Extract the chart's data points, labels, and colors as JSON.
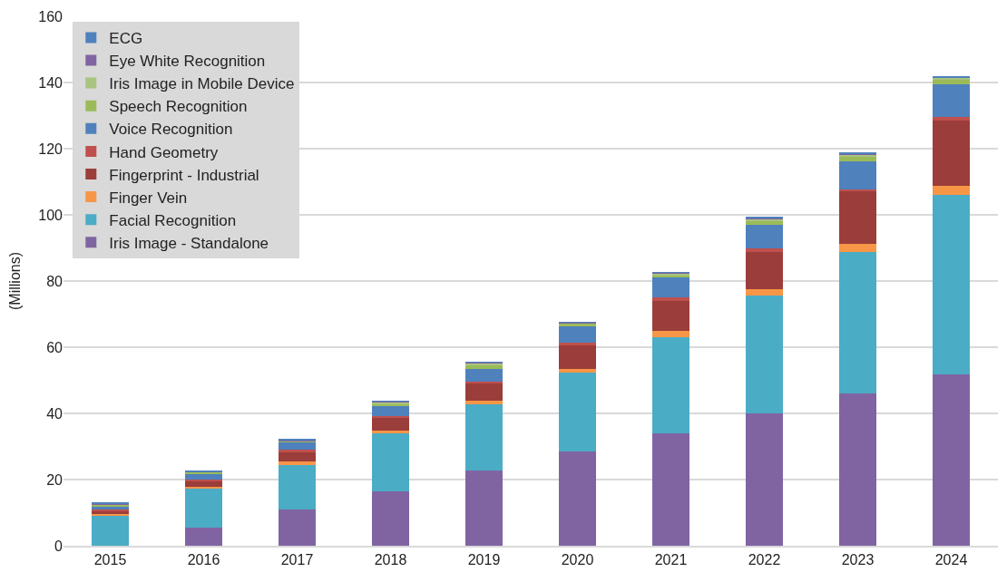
{
  "chart_data": {
    "type": "bar",
    "stacked": true,
    "ylabel": "(Millions)",
    "categories": [
      "2015",
      "2016",
      "2017",
      "2018",
      "2019",
      "2020",
      "2021",
      "2022",
      "2023",
      "2024"
    ],
    "series": [
      {
        "name": "Iris Image - Standalone",
        "color": "#8064a2",
        "values": [
          0,
          5.5,
          11,
          16.5,
          22.8,
          28.5,
          34,
          40,
          46,
          51.8
        ]
      },
      {
        "name": "Facial Recognition",
        "color": "#4bacc6",
        "values": [
          9.1,
          11.7,
          13.3,
          17.5,
          19.9,
          23.8,
          28.9,
          35.5,
          42.7,
          54.1
        ]
      },
      {
        "name": "Finger Vein",
        "color": "#f79646",
        "values": [
          0.5,
          0.7,
          1.2,
          0.9,
          1.2,
          1.1,
          2.1,
          2.1,
          2.4,
          2.8
        ]
      },
      {
        "name": "Fingerprint - Industrial",
        "color": "#9b3d3a",
        "values": [
          1.0,
          1.6,
          2.7,
          3.6,
          5.2,
          7.2,
          8.9,
          11.3,
          15.9,
          19.7
        ]
      },
      {
        "name": "Hand Geometry",
        "color": "#c0504d",
        "values": [
          0.3,
          0.4,
          0.8,
          0.7,
          0.5,
          0.9,
          1.2,
          1.1,
          0.6,
          1.2
        ]
      },
      {
        "name": "Voice Recognition",
        "color": "#4f81bd",
        "values": [
          1.0,
          1.8,
          2.1,
          3.2,
          3.7,
          4.8,
          5.9,
          6.9,
          8.7,
          9.9
        ]
      },
      {
        "name": "Speech Recognition",
        "color": "#9bbb59",
        "values": [
          0.6,
          0.5,
          0.6,
          0.5,
          1.1,
          0.9,
          0.8,
          1.2,
          1.3,
          1.3
        ]
      },
      {
        "name": "Iris Image in Mobile Device",
        "color": "#a9c47f",
        "values": [
          null,
          null,
          null,
          0.5,
          0.7,
          null,
          0.5,
          0.7,
          0.7,
          0.6
        ]
      },
      {
        "name": "Eye White Recognition",
        "color": "#8064a2",
        "values": [
          0.2,
          0.2,
          0.2,
          0.2,
          0.3,
          0.2,
          0.2,
          0.3,
          0.3,
          0.2
        ]
      },
      {
        "name": "ECG",
        "color": "#4f81bd",
        "values": [
          0.2,
          0.2,
          0.2,
          0.2,
          0.2,
          0.2,
          0.2,
          0.3,
          0.2,
          0.2
        ]
      }
    ],
    "ylim": [
      0,
      160
    ],
    "yticks": [
      0,
      20,
      40,
      60,
      80,
      100,
      120,
      140,
      160
    ],
    "grid": "y",
    "legend": "top left"
  }
}
